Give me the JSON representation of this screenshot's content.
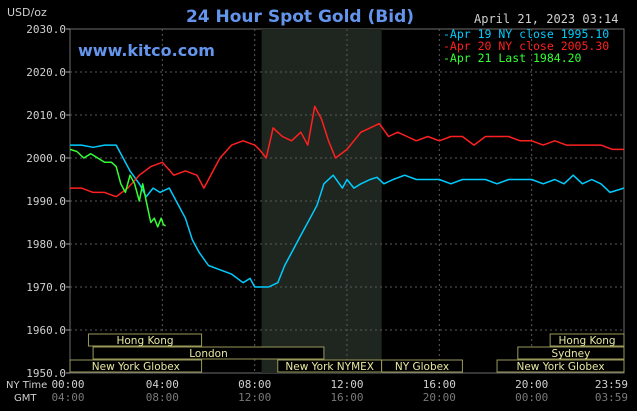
{
  "chart_data": {
    "type": "line",
    "title": "24 Hour Spot Gold (Bid)",
    "unit_label": "USD/oz",
    "watermark": "www.kitco.com",
    "timestamp": "April 21, 2023 03:14",
    "ylim": [
      1950,
      2030
    ],
    "yticks": [
      "2030.0",
      "2020.0",
      "2010.0",
      "2000.0",
      "1990.0",
      "1980.0",
      "1970.0",
      "1960.0",
      "1950.0"
    ],
    "xlim_hours": [
      0,
      24
    ],
    "ny_time_label": "NY Time",
    "gmt_label": "GMT",
    "ny_ticks": [
      "00:00",
      "04:00",
      "08:00",
      "12:00",
      "16:00",
      "20:00",
      "23:59"
    ],
    "gmt_ticks": [
      "04:00",
      "08:00",
      "12:00",
      "16:00",
      "20:00",
      "00:00",
      "03:59"
    ],
    "shaded_session_hours": [
      8.3,
      13.5
    ],
    "legend": [
      {
        "label": "Apr 19 NY close 1995.10",
        "color": "#00ccff"
      },
      {
        "label": "Apr 20 NY close 2005.30",
        "color": "#ff2020"
      },
      {
        "label": "Apr 21 Last 1984.20",
        "color": "#33ff33"
      }
    ],
    "markets": [
      {
        "name": "Hong Kong",
        "row": 0,
        "start": 0.8,
        "end": 5.7
      },
      {
        "name": "Hong Kong",
        "row": 0,
        "start": 20.8,
        "end": 24.0
      },
      {
        "name": "London",
        "row": 1,
        "start": 1.0,
        "end": 11.0
      },
      {
        "name": "Sydney",
        "row": 1,
        "start": 19.4,
        "end": 24.0
      },
      {
        "name": "New York Globex",
        "row": 2,
        "start": 0.0,
        "end": 5.7
      },
      {
        "name": "New York NYMEX",
        "row": 2,
        "start": 9.0,
        "end": 13.5
      },
      {
        "name": "NY Globex",
        "row": 2,
        "start": 13.5,
        "end": 17.0
      },
      {
        "name": "New York Globex",
        "row": 2,
        "start": 18.5,
        "end": 24.0
      }
    ],
    "series": [
      {
        "name": "Apr 19 NY close 1995.10",
        "color": "#00ccff",
        "x": [
          0,
          0.5,
          1,
          1.5,
          2,
          2.3,
          2.6,
          3,
          3.3,
          3.6,
          3.9,
          4.3,
          4.6,
          5,
          5.3,
          5.6,
          6,
          6.5,
          7,
          7.5,
          7.8,
          8,
          8.3,
          8.6,
          9,
          9.3,
          9.6,
          10,
          10.4,
          10.7,
          11,
          11.4,
          11.8,
          12,
          12.3,
          12.6,
          13,
          13.3,
          13.6,
          14,
          14.5,
          15,
          15.5,
          16,
          16.5,
          17,
          17.5,
          18,
          18.5,
          19,
          19.5,
          20,
          20.5,
          21,
          21.4,
          21.8,
          22.2,
          22.6,
          23,
          23.4,
          23.99
        ],
        "y": [
          2003,
          2003,
          2002.5,
          2003,
          2003,
          2000,
          1997,
          1994,
          1991,
          1993,
          1992,
          1993,
          1990,
          1986,
          1981,
          1978,
          1975,
          1974,
          1973,
          1971,
          1972,
          1970,
          1970,
          1970,
          1971,
          1975,
          1978,
          1982,
          1986,
          1989,
          1994,
          1996,
          1993,
          1995,
          1993,
          1994,
          1995,
          1995.5,
          1994,
          1995,
          1996,
          1995,
          1995,
          1995,
          1994,
          1995,
          1995,
          1995,
          1994,
          1995,
          1995,
          1995,
          1994,
          1995,
          1994,
          1996,
          1994,
          1995,
          1994,
          1992,
          1993
        ]
      },
      {
        "name": "Apr 20 NY close 2005.30",
        "color": "#ff2020",
        "x": [
          0,
          0.5,
          1,
          1.5,
          2,
          2.5,
          3,
          3.5,
          4,
          4.5,
          5,
          5.5,
          5.8,
          6.2,
          6.5,
          7,
          7.5,
          8,
          8.2,
          8.5,
          8.8,
          9.2,
          9.6,
          10,
          10.3,
          10.6,
          10.9,
          11.2,
          11.5,
          12,
          12.3,
          12.6,
          13,
          13.4,
          13.8,
          14.2,
          14.6,
          15,
          15.5,
          16,
          16.5,
          17,
          17.5,
          18,
          18.5,
          19,
          19.5,
          20,
          20.5,
          21,
          21.5,
          22,
          22.5,
          23,
          23.5,
          23.99
        ],
        "y": [
          1993,
          1993,
          1992,
          1992,
          1991,
          1993,
          1996,
          1998,
          1999,
          1996,
          1997,
          1996,
          1993,
          1997,
          2000,
          2003,
          2004,
          2003,
          2002,
          2000,
          2007,
          2005,
          2004,
          2006,
          2003,
          2012,
          2009,
          2004,
          2000,
          2002,
          2004,
          2006,
          2007,
          2008,
          2005,
          2006,
          2005,
          2004,
          2005,
          2004,
          2005,
          2005,
          2003,
          2005,
          2005,
          2005,
          2004,
          2004,
          2003,
          2004,
          2003,
          2003,
          2003,
          2003,
          2002,
          2002
        ]
      },
      {
        "name": "Apr 21 Last 1984.20",
        "color": "#33ff33",
        "x": [
          0,
          0.3,
          0.6,
          0.9,
          1.2,
          1.5,
          1.8,
          2.0,
          2.2,
          2.4,
          2.6,
          2.8,
          3.0,
          3.15,
          3.3,
          3.5,
          3.65,
          3.8,
          3.95,
          4.05,
          4.14
        ],
        "y": [
          2002,
          2001.5,
          2000,
          2001,
          2000,
          1999,
          1999,
          1998,
          1994,
          1992,
          1996,
          1994,
          1990,
          1994,
          1990,
          1985,
          1986,
          1984,
          1986,
          1984.5,
          1984.2
        ]
      }
    ]
  }
}
